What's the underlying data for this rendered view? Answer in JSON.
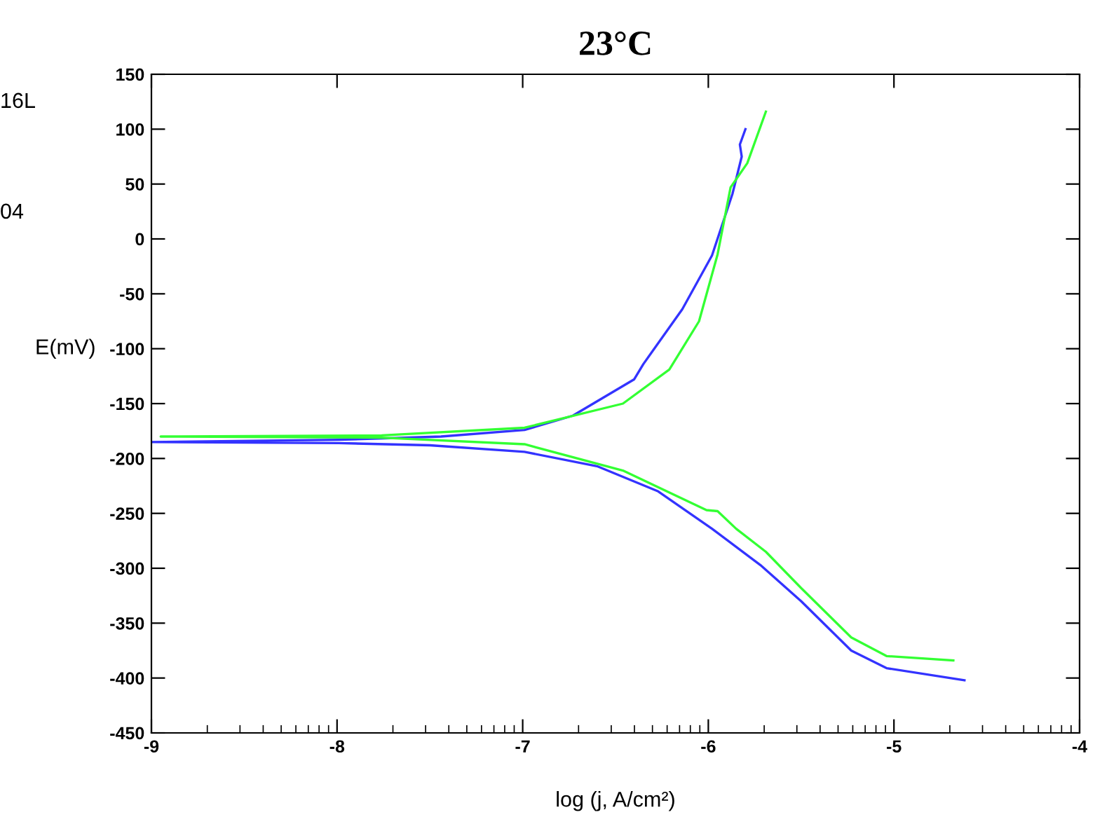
{
  "chart_data": {
    "type": "line",
    "title": "23°C",
    "xlabel": "log (j, A/cm²)",
    "ylabel": "E(mV)",
    "annotations": [
      "16L",
      "04"
    ],
    "xlim": [
      -9,
      -4
    ],
    "xticks": [
      -9,
      -8,
      -7,
      -6,
      -5,
      -4
    ],
    "ylim": [
      -450,
      150
    ],
    "yticks": [
      -450,
      -400,
      -350,
      -300,
      -250,
      -200,
      -150,
      -100,
      -50,
      0,
      50,
      100,
      150
    ],
    "grid": false,
    "legend": false,
    "marker": "none",
    "line_style": "solid",
    "series": [
      {
        "color": "#3333ff",
        "x": [
          -4.62,
          -5.04,
          -5.23,
          -5.5,
          -5.72,
          -5.98,
          -6.27,
          -6.6,
          -6.99,
          -7.5,
          -7.99,
          -9.0,
          -7.99,
          -7.44,
          -6.99,
          -6.73,
          -6.4,
          -6.35,
          -6.14,
          -5.98,
          -5.87,
          -5.82,
          -5.83,
          -5.8
        ],
        "values": [
          -402,
          -391,
          -375,
          -330,
          -297,
          -264,
          -230,
          -207,
          -194,
          -188,
          -186,
          -185,
          -183,
          -180,
          -174,
          -161,
          -128,
          -114,
          -64,
          -15,
          41,
          75,
          86,
          100
        ]
      },
      {
        "color": "#33ff33",
        "x": [
          -4.68,
          -5.04,
          -5.23,
          -5.5,
          -5.69,
          -5.85,
          -5.95,
          -6.01,
          -6.46,
          -6.99,
          -7.76,
          -8.95,
          -7.76,
          -6.99,
          -6.46,
          -6.21,
          -6.05,
          -5.95,
          -5.88,
          -5.79,
          -5.69
        ],
        "values": [
          -384,
          -380,
          -363,
          -318,
          -285,
          -264,
          -248,
          -247,
          -211,
          -187,
          -181,
          -180,
          -179,
          -172,
          -150,
          -119,
          -75,
          -14,
          47,
          69,
          116
        ]
      }
    ]
  }
}
